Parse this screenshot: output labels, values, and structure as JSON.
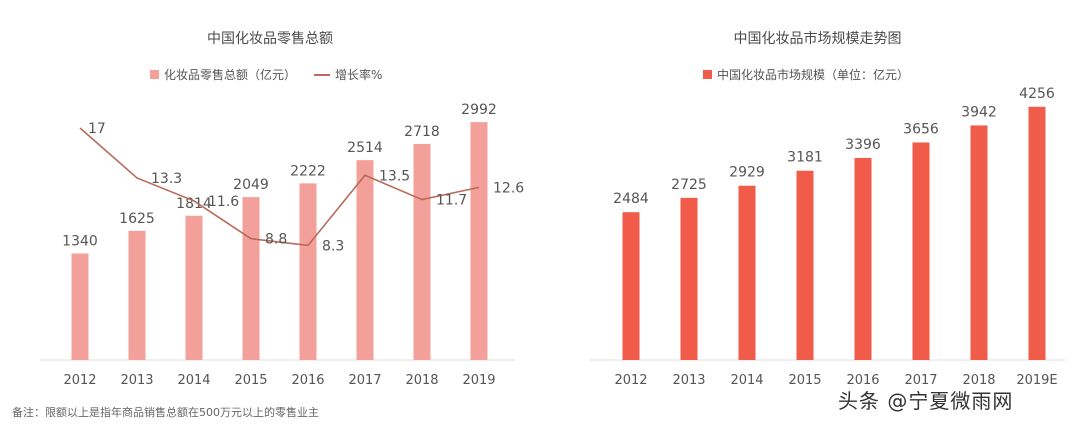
{
  "chart_data": [
    {
      "type": "bar",
      "title": "中国化妆品零售总额",
      "categories": [
        "2012",
        "2013",
        "2014",
        "2015",
        "2016",
        "2017",
        "2018",
        "2019"
      ],
      "series": [
        {
          "name": "化妆品零售总额（亿元）",
          "type": "bar",
          "color": "#f4a09a",
          "values": [
            1340,
            1625,
            1814,
            2049,
            2222,
            2514,
            2718,
            2992
          ],
          "labels": [
            "1340",
            "1625",
            "1814",
            "2049",
            "2222",
            "2514",
            "2718",
            "2992"
          ]
        },
        {
          "name": "增长率%",
          "type": "line",
          "color": "#b96a5a",
          "values": [
            17,
            13.3,
            11.6,
            8.8,
            8.3,
            13.5,
            11.7,
            12.6
          ],
          "labels": [
            "17",
            "13.3",
            "11.6",
            "8.8",
            "8.3",
            "13.5",
            "11.7",
            "12.6"
          ]
        }
      ],
      "legend_position": "top",
      "grid": false
    },
    {
      "type": "bar",
      "title": "中国化妆品市场规模走势图",
      "categories": [
        "2012",
        "2013",
        "2014",
        "2015",
        "2016",
        "2017",
        "2018",
        "2019E"
      ],
      "series": [
        {
          "name": "中国化妆品市场规模（单位：亿元）",
          "color": "#f15c4a",
          "values": [
            2484,
            2725,
            2929,
            3181,
            3396,
            3656,
            3942,
            4256
          ],
          "labels": [
            "2484",
            "2725",
            "2929",
            "3181",
            "3396",
            "3656",
            "3942",
            "4256"
          ]
        }
      ],
      "legend_position": "top",
      "grid": false
    }
  ],
  "footnote": "备注：限额以上是指年商品销售总额在500万元以上的零售业主",
  "watermark": "头条 @宁夏微雨网"
}
